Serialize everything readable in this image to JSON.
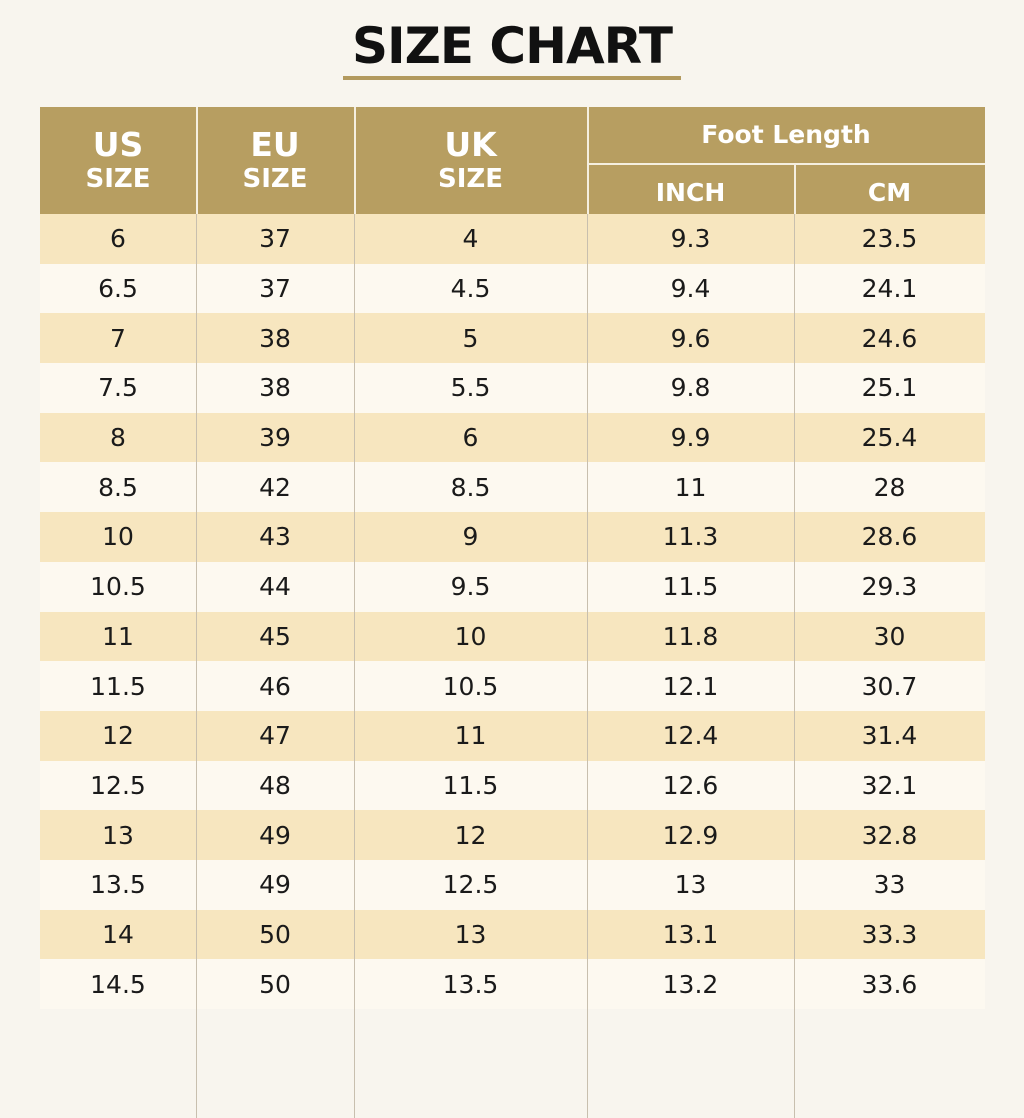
{
  "title": "SIZE CHART",
  "colors": {
    "header_bg": "#b79e61",
    "stripe": "#f7e6bf",
    "background": "#f8f5ee"
  },
  "header": {
    "us": {
      "line1": "US",
      "line2": "SIZE"
    },
    "eu": {
      "line1": "EU",
      "line2": "SIZE"
    },
    "uk": {
      "line1": "UK",
      "line2": "SIZE"
    },
    "foot_length": "Foot Length",
    "inch": "INCH",
    "cm": "CM"
  },
  "rows": [
    {
      "us": "6",
      "eu": "37",
      "uk": "4",
      "inch": "9.3",
      "cm": "23.5"
    },
    {
      "us": "6.5",
      "eu": "37",
      "uk": "4.5",
      "inch": "9.4",
      "cm": "24.1"
    },
    {
      "us": "7",
      "eu": "38",
      "uk": "5",
      "inch": "9.6",
      "cm": "24.6"
    },
    {
      "us": "7.5",
      "eu": "38",
      "uk": "5.5",
      "inch": "9.8",
      "cm": "25.1"
    },
    {
      "us": "8",
      "eu": "39",
      "uk": "6",
      "inch": "9.9",
      "cm": "25.4"
    },
    {
      "us": "8.5",
      "eu": "42",
      "uk": "8.5",
      "inch": "11",
      "cm": "28"
    },
    {
      "us": "10",
      "eu": "43",
      "uk": "9",
      "inch": "11.3",
      "cm": "28.6"
    },
    {
      "us": "10.5",
      "eu": "44",
      "uk": "9.5",
      "inch": "11.5",
      "cm": "29.3"
    },
    {
      "us": "11",
      "eu": "45",
      "uk": "10",
      "inch": "11.8",
      "cm": "30"
    },
    {
      "us": "11.5",
      "eu": "46",
      "uk": "10.5",
      "inch": "12.1",
      "cm": "30.7"
    },
    {
      "us": "12",
      "eu": "47",
      "uk": "11",
      "inch": "12.4",
      "cm": "31.4"
    },
    {
      "us": "12.5",
      "eu": "48",
      "uk": "11.5",
      "inch": "12.6",
      "cm": "32.1"
    },
    {
      "us": "13",
      "eu": "49",
      "uk": "12",
      "inch": "12.9",
      "cm": "32.8"
    },
    {
      "us": "13.5",
      "eu": "49",
      "uk": "12.5",
      "inch": "13",
      "cm": "33"
    },
    {
      "us": "14",
      "eu": "50",
      "uk": "13",
      "inch": "13.1",
      "cm": "33.3"
    },
    {
      "us": "14.5",
      "eu": "50",
      "uk": "13.5",
      "inch": "13.2",
      "cm": "33.6"
    }
  ]
}
